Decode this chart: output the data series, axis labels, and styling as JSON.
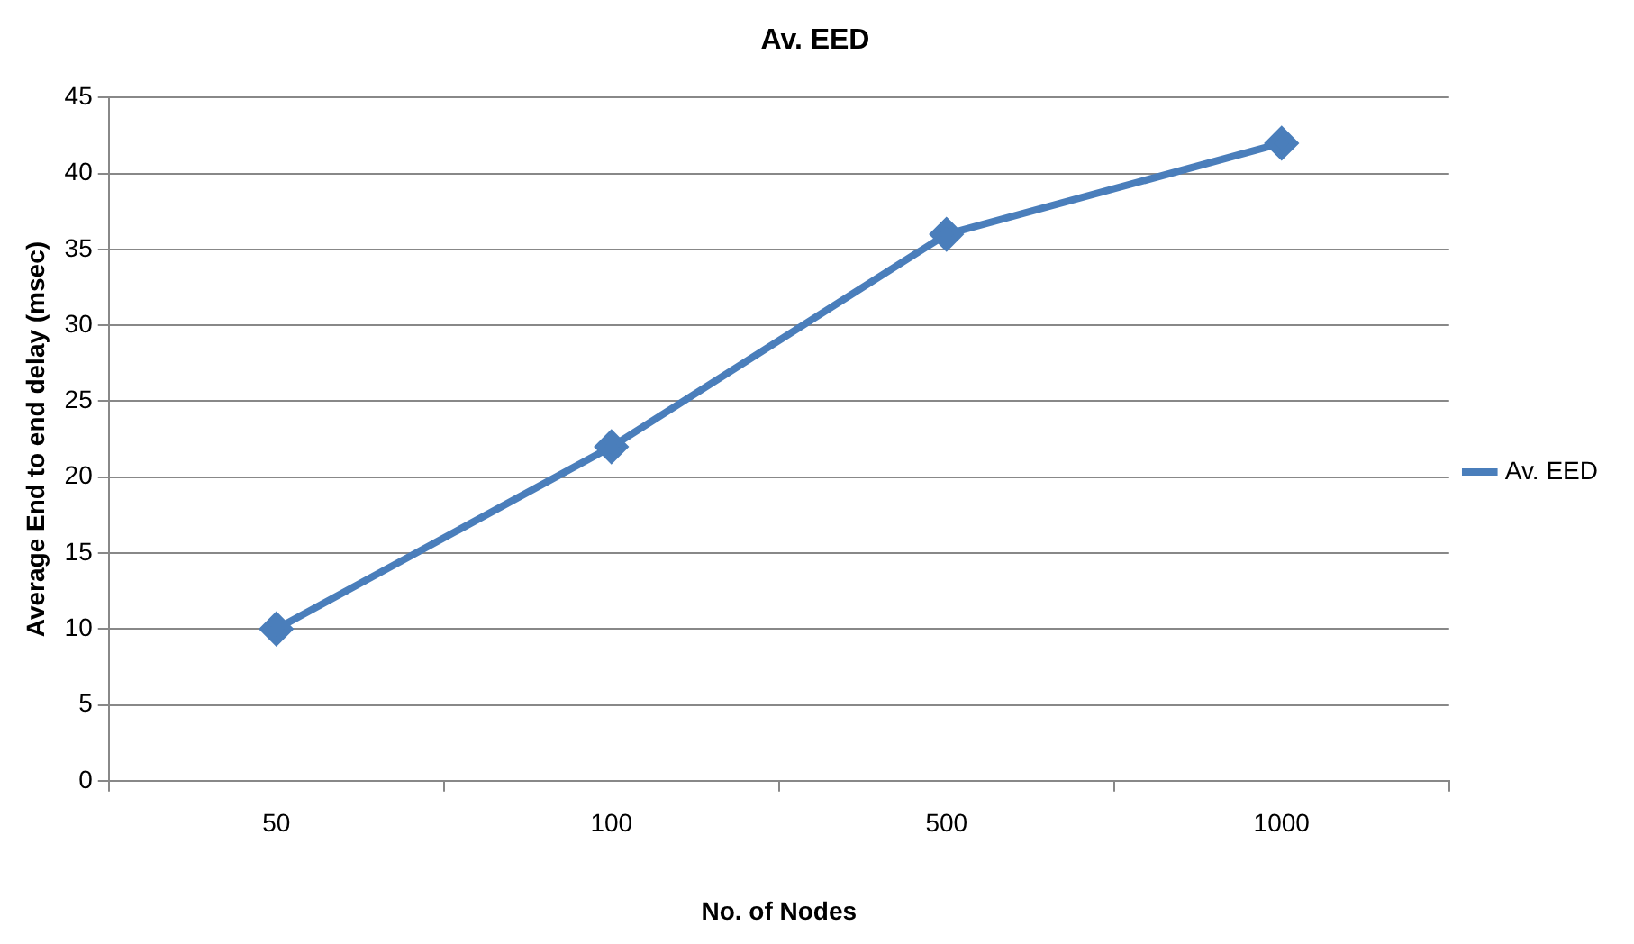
{
  "chart_data": {
    "type": "line",
    "title": "Av. EED",
    "xlabel": "No. of Nodes",
    "ylabel": "Average End to end delay (msec)",
    "categories": [
      "50",
      "100",
      "500",
      "1000"
    ],
    "series": [
      {
        "name": "Av. EED",
        "color": "#4a7ebb",
        "values": [
          10,
          22,
          36,
          42
        ]
      }
    ],
    "ylim": [
      0,
      45
    ],
    "yticks": [
      0,
      5,
      10,
      15,
      20,
      25,
      30,
      35,
      40,
      45
    ],
    "grid": "y",
    "legend": "right",
    "marker": "diamond",
    "line_style": "solid"
  }
}
